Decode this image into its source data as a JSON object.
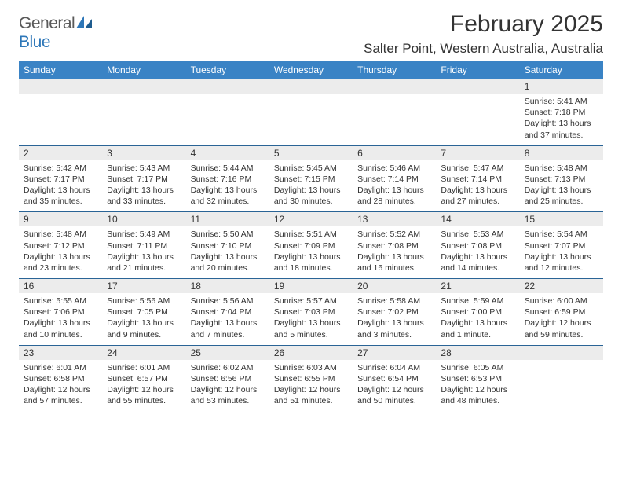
{
  "brand": {
    "general": "General",
    "blue": "Blue"
  },
  "colors": {
    "accent": "#3a83c5",
    "header_border": "#2a6496",
    "daynum_bg": "#ececec",
    "text": "#333333",
    "logo_gray": "#5a5a5a",
    "logo_blue": "#2e77b8",
    "background": "#ffffff"
  },
  "title": "February 2025",
  "location": "Salter Point, Western Australia, Australia",
  "weekdays": [
    "Sunday",
    "Monday",
    "Tuesday",
    "Wednesday",
    "Thursday",
    "Friday",
    "Saturday"
  ],
  "weeks": [
    [
      {
        "num": "",
        "sunrise": "",
        "sunset": "",
        "daylight": ""
      },
      {
        "num": "",
        "sunrise": "",
        "sunset": "",
        "daylight": ""
      },
      {
        "num": "",
        "sunrise": "",
        "sunset": "",
        "daylight": ""
      },
      {
        "num": "",
        "sunrise": "",
        "sunset": "",
        "daylight": ""
      },
      {
        "num": "",
        "sunrise": "",
        "sunset": "",
        "daylight": ""
      },
      {
        "num": "",
        "sunrise": "",
        "sunset": "",
        "daylight": ""
      },
      {
        "num": "1",
        "sunrise": "Sunrise: 5:41 AM",
        "sunset": "Sunset: 7:18 PM",
        "daylight": "Daylight: 13 hours and 37 minutes."
      }
    ],
    [
      {
        "num": "2",
        "sunrise": "Sunrise: 5:42 AM",
        "sunset": "Sunset: 7:17 PM",
        "daylight": "Daylight: 13 hours and 35 minutes."
      },
      {
        "num": "3",
        "sunrise": "Sunrise: 5:43 AM",
        "sunset": "Sunset: 7:17 PM",
        "daylight": "Daylight: 13 hours and 33 minutes."
      },
      {
        "num": "4",
        "sunrise": "Sunrise: 5:44 AM",
        "sunset": "Sunset: 7:16 PM",
        "daylight": "Daylight: 13 hours and 32 minutes."
      },
      {
        "num": "5",
        "sunrise": "Sunrise: 5:45 AM",
        "sunset": "Sunset: 7:15 PM",
        "daylight": "Daylight: 13 hours and 30 minutes."
      },
      {
        "num": "6",
        "sunrise": "Sunrise: 5:46 AM",
        "sunset": "Sunset: 7:14 PM",
        "daylight": "Daylight: 13 hours and 28 minutes."
      },
      {
        "num": "7",
        "sunrise": "Sunrise: 5:47 AM",
        "sunset": "Sunset: 7:14 PM",
        "daylight": "Daylight: 13 hours and 27 minutes."
      },
      {
        "num": "8",
        "sunrise": "Sunrise: 5:48 AM",
        "sunset": "Sunset: 7:13 PM",
        "daylight": "Daylight: 13 hours and 25 minutes."
      }
    ],
    [
      {
        "num": "9",
        "sunrise": "Sunrise: 5:48 AM",
        "sunset": "Sunset: 7:12 PM",
        "daylight": "Daylight: 13 hours and 23 minutes."
      },
      {
        "num": "10",
        "sunrise": "Sunrise: 5:49 AM",
        "sunset": "Sunset: 7:11 PM",
        "daylight": "Daylight: 13 hours and 21 minutes."
      },
      {
        "num": "11",
        "sunrise": "Sunrise: 5:50 AM",
        "sunset": "Sunset: 7:10 PM",
        "daylight": "Daylight: 13 hours and 20 minutes."
      },
      {
        "num": "12",
        "sunrise": "Sunrise: 5:51 AM",
        "sunset": "Sunset: 7:09 PM",
        "daylight": "Daylight: 13 hours and 18 minutes."
      },
      {
        "num": "13",
        "sunrise": "Sunrise: 5:52 AM",
        "sunset": "Sunset: 7:08 PM",
        "daylight": "Daylight: 13 hours and 16 minutes."
      },
      {
        "num": "14",
        "sunrise": "Sunrise: 5:53 AM",
        "sunset": "Sunset: 7:08 PM",
        "daylight": "Daylight: 13 hours and 14 minutes."
      },
      {
        "num": "15",
        "sunrise": "Sunrise: 5:54 AM",
        "sunset": "Sunset: 7:07 PM",
        "daylight": "Daylight: 13 hours and 12 minutes."
      }
    ],
    [
      {
        "num": "16",
        "sunrise": "Sunrise: 5:55 AM",
        "sunset": "Sunset: 7:06 PM",
        "daylight": "Daylight: 13 hours and 10 minutes."
      },
      {
        "num": "17",
        "sunrise": "Sunrise: 5:56 AM",
        "sunset": "Sunset: 7:05 PM",
        "daylight": "Daylight: 13 hours and 9 minutes."
      },
      {
        "num": "18",
        "sunrise": "Sunrise: 5:56 AM",
        "sunset": "Sunset: 7:04 PM",
        "daylight": "Daylight: 13 hours and 7 minutes."
      },
      {
        "num": "19",
        "sunrise": "Sunrise: 5:57 AM",
        "sunset": "Sunset: 7:03 PM",
        "daylight": "Daylight: 13 hours and 5 minutes."
      },
      {
        "num": "20",
        "sunrise": "Sunrise: 5:58 AM",
        "sunset": "Sunset: 7:02 PM",
        "daylight": "Daylight: 13 hours and 3 minutes."
      },
      {
        "num": "21",
        "sunrise": "Sunrise: 5:59 AM",
        "sunset": "Sunset: 7:00 PM",
        "daylight": "Daylight: 13 hours and 1 minute."
      },
      {
        "num": "22",
        "sunrise": "Sunrise: 6:00 AM",
        "sunset": "Sunset: 6:59 PM",
        "daylight": "Daylight: 12 hours and 59 minutes."
      }
    ],
    [
      {
        "num": "23",
        "sunrise": "Sunrise: 6:01 AM",
        "sunset": "Sunset: 6:58 PM",
        "daylight": "Daylight: 12 hours and 57 minutes."
      },
      {
        "num": "24",
        "sunrise": "Sunrise: 6:01 AM",
        "sunset": "Sunset: 6:57 PM",
        "daylight": "Daylight: 12 hours and 55 minutes."
      },
      {
        "num": "25",
        "sunrise": "Sunrise: 6:02 AM",
        "sunset": "Sunset: 6:56 PM",
        "daylight": "Daylight: 12 hours and 53 minutes."
      },
      {
        "num": "26",
        "sunrise": "Sunrise: 6:03 AM",
        "sunset": "Sunset: 6:55 PM",
        "daylight": "Daylight: 12 hours and 51 minutes."
      },
      {
        "num": "27",
        "sunrise": "Sunrise: 6:04 AM",
        "sunset": "Sunset: 6:54 PM",
        "daylight": "Daylight: 12 hours and 50 minutes."
      },
      {
        "num": "28",
        "sunrise": "Sunrise: 6:05 AM",
        "sunset": "Sunset: 6:53 PM",
        "daylight": "Daylight: 12 hours and 48 minutes."
      },
      {
        "num": "",
        "sunrise": "",
        "sunset": "",
        "daylight": ""
      }
    ]
  ]
}
